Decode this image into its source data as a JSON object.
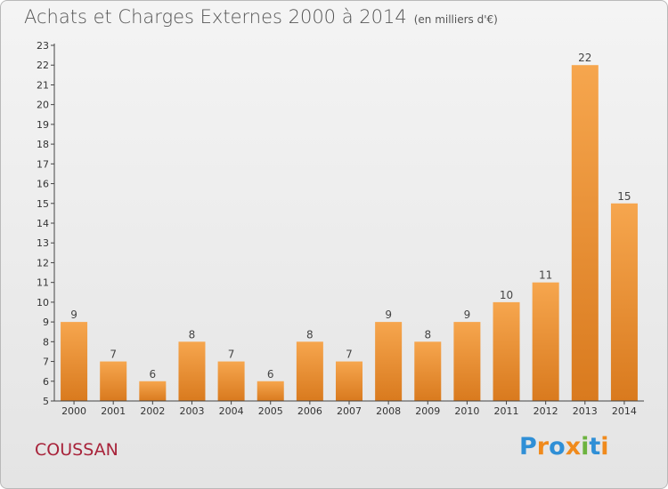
{
  "header": {
    "title": "Achats et Charges Externes 2000 à 2014",
    "subtitle": "(en milliers d'€)"
  },
  "footer": {
    "commune": "COUSSAN",
    "logo_text": "Proxiti"
  },
  "colors": {
    "bar_light": "#f6a64e",
    "bar_dark": "#d97a1e",
    "commune": "#a8233a",
    "logo": [
      "#2f8fd6",
      "#f08a1c",
      "#2f8fd6",
      "#f08a1c",
      "#6cb33f",
      "#2f8fd6",
      "#f08a1c"
    ]
  },
  "chart_data": {
    "type": "bar",
    "title": "Achats et Charges Externes 2000 à 2014",
    "subtitle": "(en milliers d'€)",
    "categories": [
      "2000",
      "2001",
      "2002",
      "2003",
      "2004",
      "2005",
      "2006",
      "2007",
      "2008",
      "2009",
      "2010",
      "2011",
      "2012",
      "2013",
      "2014"
    ],
    "values": [
      9,
      7,
      6,
      8,
      7,
      6,
      8,
      7,
      9,
      8,
      9,
      10,
      11,
      22,
      15
    ],
    "xlabel": "",
    "ylabel": "",
    "ylim": [
      5,
      23
    ],
    "yticks": [
      5,
      6,
      7,
      8,
      9,
      10,
      11,
      12,
      13,
      14,
      15,
      16,
      17,
      18,
      19,
      20,
      21,
      22,
      23
    ],
    "grid": false,
    "data_labels": true
  }
}
